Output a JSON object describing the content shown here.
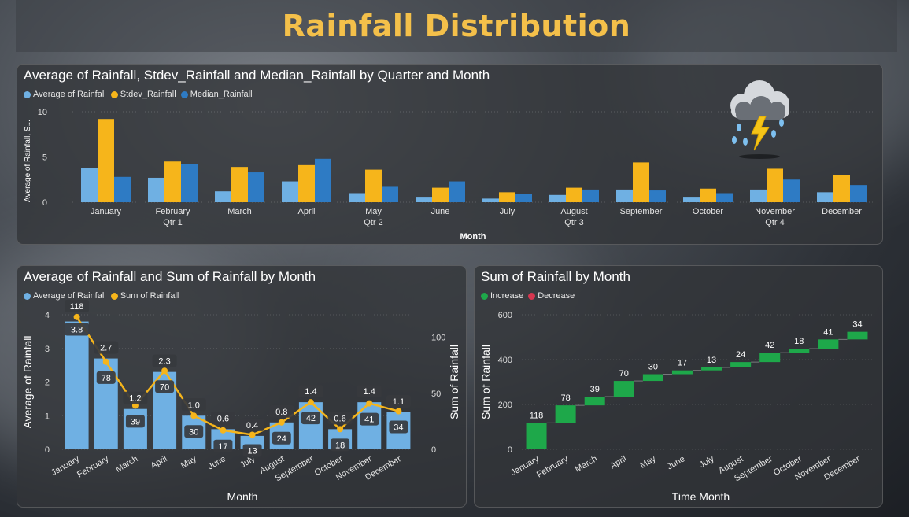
{
  "page": {
    "title": "Rainfall Distribution"
  },
  "colors": {
    "avg": "#6fb0e3",
    "stdev": "#f6b51b",
    "median": "#2e7bc4",
    "increase": "#1ea84a",
    "decrease": "#d7364f",
    "title": "#f4c04a"
  },
  "icons": {
    "weather": "storm-cloud-icon"
  },
  "chart_data": [
    {
      "type": "bar",
      "title": "Average of Rainfall, Stdev_Rainfall and Median_Rainfall by Quarter and Month",
      "xlabel": "Month",
      "ylabel": "Average of Rainfall, S...",
      "ylim": [
        0,
        10
      ],
      "yticks": [
        0,
        5,
        10
      ],
      "categories": [
        "January",
        "February",
        "March",
        "April",
        "May",
        "June",
        "July",
        "August",
        "September",
        "October",
        "November",
        "December"
      ],
      "quarters": [
        {
          "label": "Qtr 1",
          "under": "February"
        },
        {
          "label": "Qtr 2",
          "under": "May"
        },
        {
          "label": "Qtr 3",
          "under": "August"
        },
        {
          "label": "Qtr 4",
          "under": "November"
        }
      ],
      "series": [
        {
          "name": "Average of Rainfall",
          "values": [
            3.8,
            2.7,
            1.2,
            2.3,
            1.0,
            0.6,
            0.4,
            0.8,
            1.4,
            0.6,
            1.4,
            1.1
          ]
        },
        {
          "name": "Stdev_Rainfall",
          "values": [
            9.2,
            4.5,
            3.9,
            4.1,
            3.6,
            1.6,
            1.1,
            1.6,
            4.4,
            1.5,
            3.7,
            3.0
          ]
        },
        {
          "name": "Median_Rainfall",
          "values": [
            2.8,
            4.2,
            3.3,
            4.8,
            1.7,
            2.3,
            0.9,
            1.4,
            1.3,
            1.0,
            2.5,
            1.9
          ]
        }
      ],
      "legend": "top-left",
      "grid": true
    },
    {
      "type": "bar",
      "title": "Average of Rainfall and Sum of Rainfall by Month",
      "xlabel": "Month",
      "ylabel": "Average of Rainfall",
      "y2label": "Sum of Rainfall",
      "ylim": [
        0,
        4
      ],
      "yticks": [
        0,
        1,
        2,
        3,
        4
      ],
      "y2lim": [
        0,
        120
      ],
      "y2ticks": [
        0,
        50,
        100
      ],
      "categories": [
        "January",
        "February",
        "March",
        "April",
        "May",
        "June",
        "July",
        "August",
        "September",
        "October",
        "November",
        "December"
      ],
      "series": [
        {
          "name": "Average of Rainfall",
          "values": [
            3.8,
            2.7,
            1.2,
            2.3,
            1.0,
            0.6,
            0.4,
            0.8,
            1.4,
            0.6,
            1.4,
            1.1
          ],
          "labels": [
            "3.8",
            "2.7",
            "1.2",
            "2.3",
            "1.0",
            "0.6",
            "0.4",
            "0.8",
            "1.4",
            "0.6",
            "1.4",
            "1.1"
          ]
        },
        {
          "name": "Sum of Rainfall",
          "values": [
            118,
            78,
            39,
            70,
            30,
            17,
            13,
            24,
            42,
            18,
            41,
            34
          ],
          "labels": [
            "118",
            "78",
            "39",
            "70",
            "30",
            "17",
            "13",
            "24",
            "42",
            "18",
            "41",
            "34"
          ]
        }
      ],
      "legend": "top-left",
      "grid": true
    },
    {
      "type": "waterfall",
      "title": "Sum of Rainfall by Month",
      "xlabel": "Time Month",
      "ylabel": "Sum of Rainfall",
      "ylim": [
        0,
        600
      ],
      "yticks": [
        0,
        200,
        400,
        600
      ],
      "categories": [
        "January",
        "February",
        "March",
        "April",
        "May",
        "June",
        "July",
        "August",
        "September",
        "October",
        "November",
        "December"
      ],
      "values": [
        118,
        78,
        39,
        70,
        30,
        17,
        13,
        24,
        42,
        18,
        41,
        34
      ],
      "labels": [
        "118",
        "78",
        "39",
        "70",
        "30",
        "17",
        "13",
        "24",
        "42",
        "18",
        "41",
        "34"
      ],
      "legend_items": [
        "Increase",
        "Decrease"
      ],
      "legend": "top-left",
      "grid": true
    }
  ]
}
